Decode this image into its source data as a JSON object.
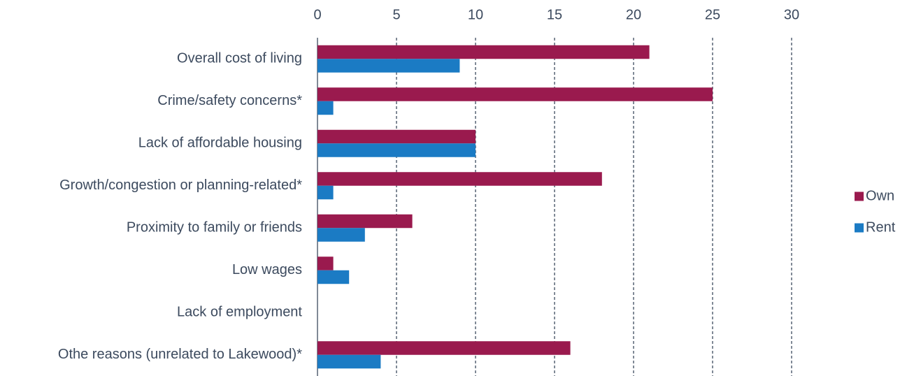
{
  "chart_data": {
    "type": "hbar",
    "categories": [
      "Overall cost of living",
      "Crime/safety concerns*",
      "Lack of affordable housing",
      "Growth/congestion or planning-related*",
      "Proximity to family or friends",
      "Low wages",
      "Lack of employment",
      "Othe reasons (unrelated to Lakewood)*"
    ],
    "series": [
      {
        "name": "Own",
        "color": "#9a1a4e",
        "values": [
          21,
          25,
          10,
          18,
          6,
          1,
          0,
          16
        ]
      },
      {
        "name": "Rent",
        "color": "#1b7bc4",
        "values": [
          9,
          1,
          10,
          1,
          3,
          2,
          0,
          4
        ]
      }
    ],
    "xlim": [
      0,
      30
    ],
    "xticks": [
      0,
      5,
      10,
      15,
      20,
      25,
      30
    ],
    "grid": true,
    "legend": "right"
  }
}
